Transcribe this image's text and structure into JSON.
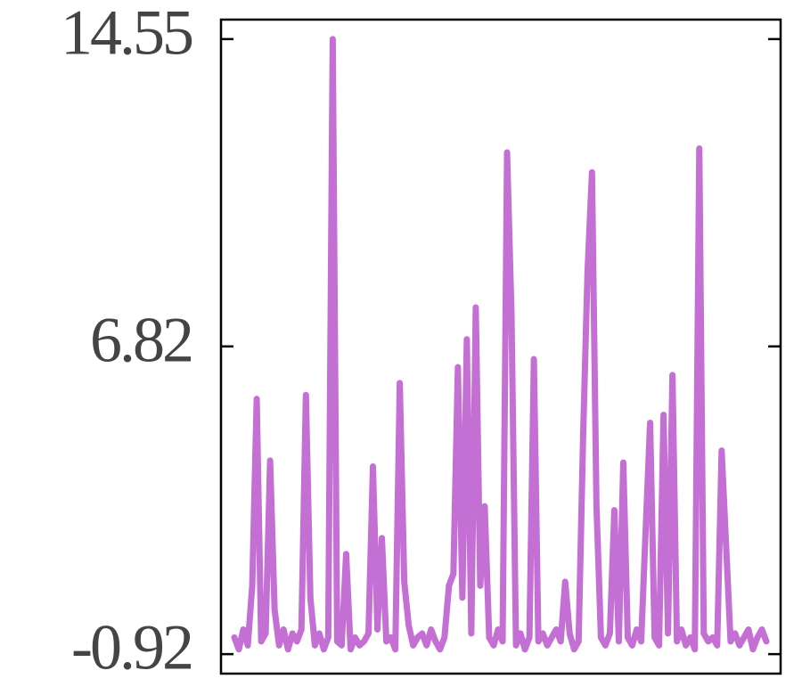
{
  "chart_data": {
    "type": "line",
    "series": [
      {
        "color": "#c36fd4",
        "values": [
          -0.5,
          -0.8,
          -0.3,
          -0.7,
          0.8,
          5.5,
          -0.6,
          -0.4,
          3.95,
          0.2,
          -0.7,
          -0.3,
          -0.8,
          -0.4,
          -0.6,
          -0.3,
          5.6,
          0.5,
          -0.7,
          -0.4,
          -0.8,
          -0.5,
          14.55,
          -0.6,
          -0.7,
          1.6,
          -0.8,
          -0.5,
          -0.7,
          -0.6,
          -0.4,
          3.8,
          -0.3,
          2.0,
          -0.6,
          -0.5,
          -0.8,
          5.9,
          0.9,
          -0.2,
          -0.7,
          -0.5,
          -0.4,
          -0.7,
          -0.3,
          -0.6,
          -0.8,
          -0.5,
          0.8,
          1.1,
          6.3,
          0.5,
          7.0,
          -0.4,
          7.8,
          0.8,
          2.8,
          -0.5,
          -0.7,
          -0.3,
          -0.6,
          11.7,
          7.6,
          -0.7,
          -0.4,
          -0.8,
          -0.5,
          6.5,
          -0.6,
          -0.4,
          -0.7,
          -0.5,
          -0.3,
          -0.6,
          0.9,
          -0.4,
          -0.8,
          -0.6,
          4.5,
          8.7,
          11.2,
          2.8,
          -0.5,
          -0.7,
          -0.4,
          2.7,
          -0.6,
          3.9,
          -0.5,
          -0.7,
          -0.3,
          -0.6,
          2.2,
          4.9,
          -0.5,
          -0.7,
          5.1,
          -0.4,
          6.1,
          -0.6,
          -0.3,
          -0.7,
          -0.5,
          -0.8,
          11.8,
          -0.4,
          -0.6,
          -0.5,
          -0.7,
          4.2,
          1.8,
          -0.6,
          -0.4,
          -0.7,
          -0.5,
          -0.3,
          -0.8,
          -0.5,
          -0.3,
          -0.6
        ]
      }
    ],
    "ylim": [
      -1.41,
      15.04
    ],
    "yticks": [
      -0.92,
      6.82,
      14.55
    ]
  }
}
